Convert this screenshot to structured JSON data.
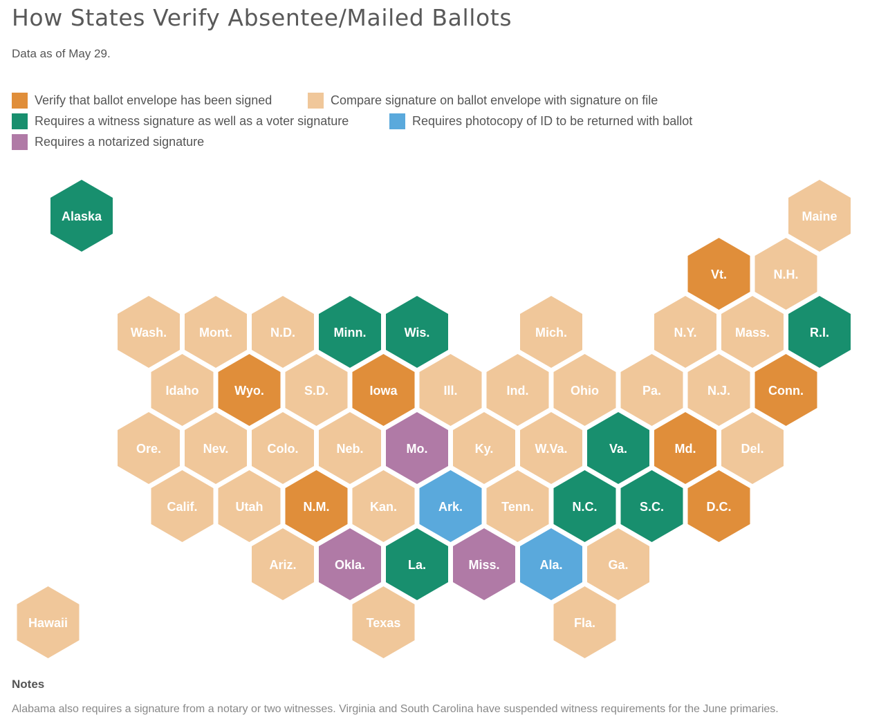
{
  "title": "How States Verify Absentee/Mailed Ballots",
  "subtitle": "Data as of May 29.",
  "legend": [
    {
      "key": "signed",
      "label": "Verify that ballot envelope has been signed",
      "color": "#E08E3A"
    },
    {
      "key": "compare",
      "label": "Compare signature on ballot envelope with signature on file",
      "color": "#F0C79A"
    },
    {
      "key": "witness",
      "label": "Requires a witness signature as well as a voter signature",
      "color": "#188F6E"
    },
    {
      "key": "id",
      "label": "Requires photocopy of ID to be returned with ballot",
      "color": "#5AA9DC"
    },
    {
      "key": "notary",
      "label": "Requires a notarized signature",
      "color": "#B07AA6"
    }
  ],
  "states": [
    {
      "name": "Alaska",
      "row": 0,
      "col": 0,
      "cat": "witness"
    },
    {
      "name": "Maine",
      "row": 0,
      "col": 11,
      "cat": "compare"
    },
    {
      "name": "Vt.",
      "row": 1,
      "col": 9.5,
      "cat": "signed"
    },
    {
      "name": "N.H.",
      "row": 1,
      "col": 10.5,
      "cat": "compare"
    },
    {
      "name": "Wash.",
      "row": 2,
      "col": 1,
      "cat": "compare"
    },
    {
      "name": "Mont.",
      "row": 2,
      "col": 2,
      "cat": "compare"
    },
    {
      "name": "N.D.",
      "row": 2,
      "col": 3,
      "cat": "compare"
    },
    {
      "name": "Minn.",
      "row": 2,
      "col": 4,
      "cat": "witness"
    },
    {
      "name": "Wis.",
      "row": 2,
      "col": 5,
      "cat": "witness"
    },
    {
      "name": "Mich.",
      "row": 2,
      "col": 7,
      "cat": "compare"
    },
    {
      "name": "N.Y.",
      "row": 2,
      "col": 9,
      "cat": "compare"
    },
    {
      "name": "Mass.",
      "row": 2,
      "col": 10,
      "cat": "compare"
    },
    {
      "name": "R.I.",
      "row": 2,
      "col": 11,
      "cat": "witness"
    },
    {
      "name": "Idaho",
      "row": 3,
      "col": 1.5,
      "cat": "compare"
    },
    {
      "name": "Wyo.",
      "row": 3,
      "col": 2.5,
      "cat": "signed"
    },
    {
      "name": "S.D.",
      "row": 3,
      "col": 3.5,
      "cat": "compare"
    },
    {
      "name": "Iowa",
      "row": 3,
      "col": 4.5,
      "cat": "signed"
    },
    {
      "name": "Ill.",
      "row": 3,
      "col": 5.5,
      "cat": "compare"
    },
    {
      "name": "Ind.",
      "row": 3,
      "col": 6.5,
      "cat": "compare"
    },
    {
      "name": "Ohio",
      "row": 3,
      "col": 7.5,
      "cat": "compare"
    },
    {
      "name": "Pa.",
      "row": 3,
      "col": 8.5,
      "cat": "compare"
    },
    {
      "name": "N.J.",
      "row": 3,
      "col": 9.5,
      "cat": "compare"
    },
    {
      "name": "Conn.",
      "row": 3,
      "col": 10.5,
      "cat": "signed"
    },
    {
      "name": "Ore.",
      "row": 4,
      "col": 1,
      "cat": "compare"
    },
    {
      "name": "Nev.",
      "row": 4,
      "col": 2,
      "cat": "compare"
    },
    {
      "name": "Colo.",
      "row": 4,
      "col": 3,
      "cat": "compare"
    },
    {
      "name": "Neb.",
      "row": 4,
      "col": 4,
      "cat": "compare"
    },
    {
      "name": "Mo.",
      "row": 4,
      "col": 5,
      "cat": "notary"
    },
    {
      "name": "Ky.",
      "row": 4,
      "col": 6,
      "cat": "compare"
    },
    {
      "name": "W.Va.",
      "row": 4,
      "col": 7,
      "cat": "compare"
    },
    {
      "name": "Va.",
      "row": 4,
      "col": 8,
      "cat": "witness"
    },
    {
      "name": "Md.",
      "row": 4,
      "col": 9,
      "cat": "signed"
    },
    {
      "name": "Del.",
      "row": 4,
      "col": 10,
      "cat": "compare"
    },
    {
      "name": "Calif.",
      "row": 5,
      "col": 1.5,
      "cat": "compare"
    },
    {
      "name": "Utah",
      "row": 5,
      "col": 2.5,
      "cat": "compare"
    },
    {
      "name": "N.M.",
      "row": 5,
      "col": 3.5,
      "cat": "signed"
    },
    {
      "name": "Kan.",
      "row": 5,
      "col": 4.5,
      "cat": "compare"
    },
    {
      "name": "Ark.",
      "row": 5,
      "col": 5.5,
      "cat": "id"
    },
    {
      "name": "Tenn.",
      "row": 5,
      "col": 6.5,
      "cat": "compare"
    },
    {
      "name": "N.C.",
      "row": 5,
      "col": 7.5,
      "cat": "witness"
    },
    {
      "name": "S.C.",
      "row": 5,
      "col": 8.5,
      "cat": "witness"
    },
    {
      "name": "D.C.",
      "row": 5,
      "col": 9.5,
      "cat": "signed"
    },
    {
      "name": "Ariz.",
      "row": 6,
      "col": 3,
      "cat": "compare"
    },
    {
      "name": "Okla.",
      "row": 6,
      "col": 4,
      "cat": "notary"
    },
    {
      "name": "La.",
      "row": 6,
      "col": 5,
      "cat": "witness"
    },
    {
      "name": "Miss.",
      "row": 6,
      "col": 6,
      "cat": "notary"
    },
    {
      "name": "Ala.",
      "row": 6,
      "col": 7,
      "cat": "id"
    },
    {
      "name": "Ga.",
      "row": 6,
      "col": 8,
      "cat": "compare"
    },
    {
      "name": "Hawaii",
      "row": 7,
      "col": -0.5,
      "cat": "compare"
    },
    {
      "name": "Texas",
      "row": 7,
      "col": 4.5,
      "cat": "compare"
    },
    {
      "name": "Fla.",
      "row": 7,
      "col": 7.5,
      "cat": "compare"
    }
  ],
  "notes": {
    "heading": "Notes",
    "text": "Alabama also requires a signature from a notary or two witnesses. Virginia and South Carolina have suspended witness requirements for the June primaries."
  }
}
